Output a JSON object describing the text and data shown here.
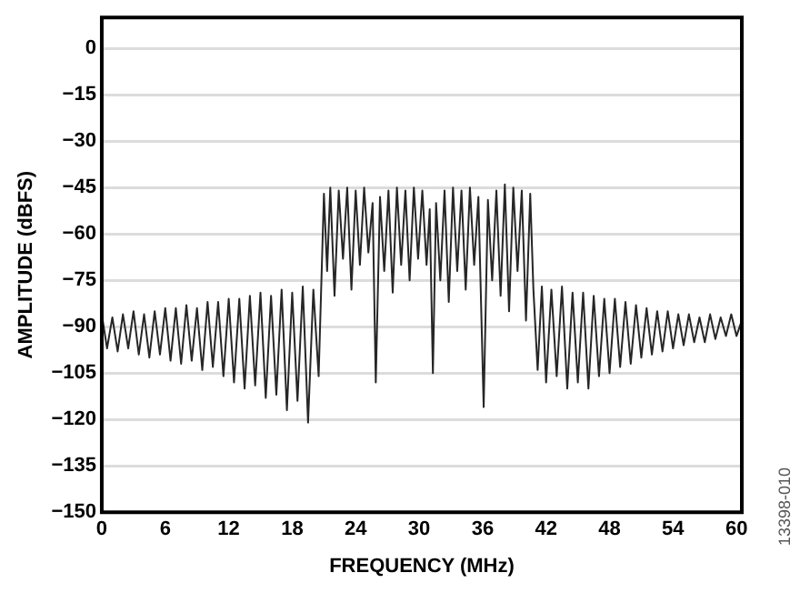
{
  "chart_data": {
    "type": "line",
    "xlabel": "FREQUENCY (MHz)",
    "ylabel": "AMPLITUDE (dBFS)",
    "annotations": [
      "13398-010"
    ],
    "x": [
      0,
      0.5,
      1,
      1.5,
      2,
      2.5,
      3,
      3.5,
      4,
      4.5,
      5,
      5.5,
      6,
      6.5,
      7,
      7.5,
      8,
      8.5,
      9,
      9.5,
      10,
      10.5,
      11,
      11.5,
      12,
      12.5,
      13,
      13.5,
      14,
      14.5,
      15,
      15.5,
      16,
      16.5,
      17,
      17.5,
      18,
      18.5,
      19,
      19.5,
      20,
      20.5,
      21,
      21.3,
      21.6,
      22,
      22.4,
      22.8,
      23.2,
      23.6,
      24,
      24.4,
      24.8,
      25.2,
      25.6,
      25.9,
      26.3,
      26.7,
      27.1,
      27.5,
      27.9,
      28.3,
      28.7,
      29.1,
      29.5,
      29.9,
      30.3,
      30.7,
      31,
      31.3,
      31.6,
      32,
      32.4,
      32.8,
      33.2,
      33.6,
      34,
      34.4,
      34.8,
      35.2,
      35.6,
      36.1,
      36.5,
      36.9,
      37.3,
      37.7,
      38.1,
      38.5,
      38.9,
      39.3,
      39.7,
      40.1,
      40.5,
      40.8,
      41.2,
      41.6,
      42,
      42.5,
      43,
      43.5,
      44,
      44.5,
      45,
      45.5,
      46,
      46.5,
      47,
      47.5,
      48,
      48.5,
      49,
      49.5,
      50,
      50.5,
      51,
      51.5,
      52,
      52.5,
      53,
      53.5,
      54,
      54.5,
      55,
      55.5,
      56,
      56.5,
      57,
      57.5,
      58,
      58.5,
      59,
      59.5,
      60,
      60.5
    ],
    "series": [
      {
        "color": "#262626",
        "values": [
          -86,
          -97,
          -87,
          -98,
          -86,
          -97,
          -85,
          -99,
          -86,
          -100,
          -85,
          -99,
          -84,
          -101,
          -84,
          -102,
          -83,
          -101,
          -84,
          -104,
          -82,
          -103,
          -82,
          -106,
          -81,
          -108,
          -81,
          -110,
          -80,
          -109,
          -79,
          -113,
          -80,
          -112,
          -78,
          -117,
          -79,
          -114,
          -77,
          -121,
          -78,
          -106,
          -47,
          -72,
          -45,
          -80,
          -46,
          -68,
          -45,
          -78,
          -46,
          -70,
          -45,
          -66,
          -50,
          -108,
          -48,
          -72,
          -46,
          -79,
          -45,
          -70,
          -46,
          -75,
          -45,
          -68,
          -46,
          -70,
          -52,
          -105,
          -50,
          -75,
          -46,
          -82,
          -45,
          -72,
          -46,
          -78,
          -45,
          -70,
          -48,
          -116,
          -49,
          -75,
          -46,
          -80,
          -44,
          -85,
          -45,
          -72,
          -46,
          -88,
          -47,
          -78,
          -104,
          -77,
          -108,
          -78,
          -106,
          -77,
          -110,
          -79,
          -108,
          -79,
          -110,
          -80,
          -106,
          -81,
          -105,
          -81,
          -103,
          -82,
          -102,
          -83,
          -100,
          -84,
          -99,
          -85,
          -98,
          -85,
          -97,
          -86,
          -96,
          -86,
          -95,
          -87,
          -95,
          -86,
          -94,
          -87,
          -93,
          -86,
          -93,
          -88
        ]
      }
    ],
    "xlim": [
      0,
      60.5
    ],
    "ylim": [
      -150,
      10
    ],
    "xticks": [
      0,
      6,
      12,
      18,
      24,
      30,
      36,
      42,
      48,
      54,
      60
    ],
    "yticks": [
      0,
      {
        "value": -15,
        "label": "−15"
      },
      {
        "value": -30,
        "label": "−30"
      },
      {
        "value": -45,
        "label": "−45"
      },
      {
        "value": -60,
        "label": "−60"
      },
      {
        "value": -75,
        "label": "−75"
      },
      {
        "value": -90,
        "label": "−90"
      },
      {
        "value": -105,
        "label": "−105"
      },
      {
        "value": -120,
        "label": "−120"
      },
      {
        "value": -135,
        "label": "−135"
      },
      {
        "value": -150,
        "label": "−150"
      }
    ],
    "grid": "y",
    "legend": false,
    "marker": "none",
    "line_style": "solid"
  }
}
